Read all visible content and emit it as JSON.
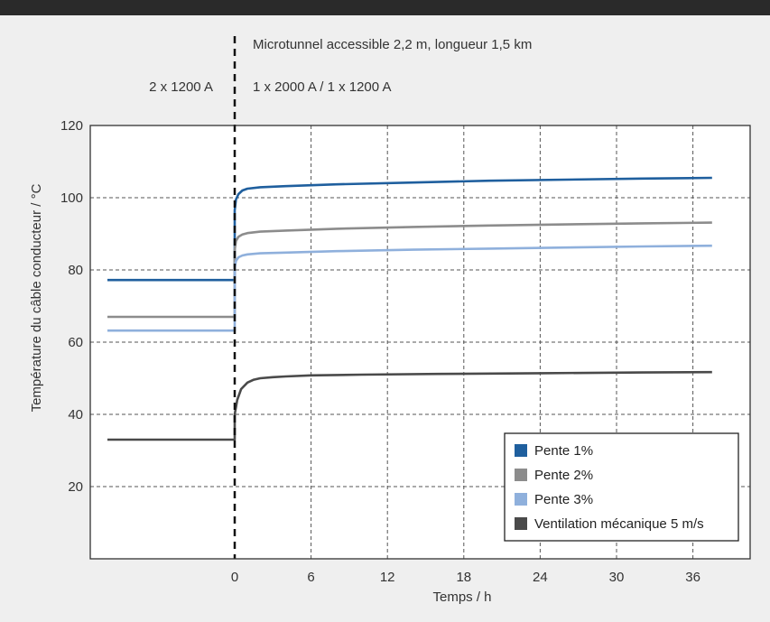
{
  "chart_data": {
    "type": "line",
    "title": "",
    "xlabel": "Temps / h",
    "ylabel": "Température du câble conducteur / °C",
    "xlim": [
      -10,
      38
    ],
    "ylim": [
      0,
      120
    ],
    "x_ticks": [
      0,
      6,
      12,
      18,
      24,
      30,
      36
    ],
    "x_tick_labels": [
      "0",
      "6",
      "12",
      "18",
      "24",
      "30",
      "36"
    ],
    "y_ticks": [
      20,
      40,
      60,
      80,
      100,
      120
    ],
    "y_tick_labels": [
      "20",
      "40",
      "60",
      "80",
      "100",
      "120"
    ],
    "grid": true,
    "legend_position": "bottom-right",
    "annotations": {
      "top": "Microtunnel accessible 2,2 m, longueur 1,5 km",
      "left": "2 x 1200 A",
      "right": "1 x 2000 A / 1 x 1200 A"
    },
    "series": [
      {
        "name": "Pente 1%",
        "color": "#1f5f9e",
        "x": [
          -10,
          0,
          0,
          0.1,
          0.3,
          0.6,
          1,
          2,
          4,
          8,
          14,
          20,
          26,
          32,
          37.5
        ],
        "y": [
          77.2,
          77.2,
          96.5,
          99.5,
          101,
          102,
          102.5,
          102.9,
          103.2,
          103.7,
          104.2,
          104.7,
          105,
          105.3,
          105.5
        ]
      },
      {
        "name": "Pente 2%",
        "color": "#8c8c8c",
        "x": [
          -10,
          0,
          0,
          0.1,
          0.3,
          0.6,
          1,
          2,
          4,
          8,
          14,
          20,
          26,
          32,
          37.5
        ],
        "y": [
          67,
          67,
          85.5,
          88,
          89.2,
          89.8,
          90.2,
          90.6,
          90.9,
          91.4,
          91.9,
          92.3,
          92.6,
          92.9,
          93.1
        ]
      },
      {
        "name": "Pente 3%",
        "color": "#8fb0dc",
        "x": [
          -10,
          0,
          0,
          0.1,
          0.3,
          0.6,
          1,
          2,
          4,
          8,
          14,
          20,
          26,
          32,
          37.5
        ],
        "y": [
          63.2,
          63.2,
          80.5,
          82.5,
          83.5,
          84,
          84.3,
          84.6,
          84.8,
          85.2,
          85.6,
          85.9,
          86.2,
          86.5,
          86.7
        ]
      },
      {
        "name": "Ventilation mécanique 5 m/s",
        "color": "#4a4a4a",
        "x": [
          -10,
          0,
          0,
          0.2,
          0.5,
          1,
          1.5,
          2,
          3,
          4,
          6,
          10,
          16,
          24,
          32,
          37.5
        ],
        "y": [
          33,
          33,
          40,
          44,
          47,
          48.8,
          49.6,
          50,
          50.3,
          50.5,
          50.8,
          51,
          51.2,
          51.4,
          51.6,
          51.7
        ]
      }
    ]
  }
}
